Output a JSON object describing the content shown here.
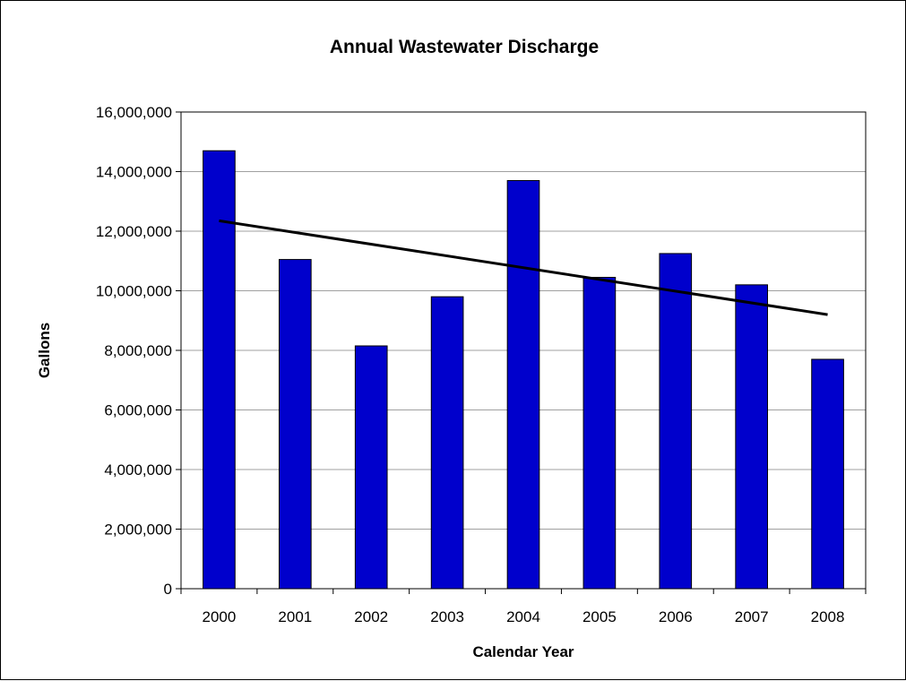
{
  "chart_data": {
    "type": "bar",
    "title": "Annual Wastewater Discharge",
    "xlabel": "Calendar Year",
    "ylabel": "Gallons",
    "categories": [
      "2000",
      "2001",
      "2002",
      "2003",
      "2004",
      "2005",
      "2006",
      "2007",
      "2008"
    ],
    "series": [
      {
        "values": [
          14700000,
          11050000,
          8150000,
          9800000,
          13700000,
          10450000,
          11250000,
          10200000,
          7700000
        ]
      }
    ],
    "trendline": {
      "type": "linear",
      "start": 12350000,
      "end": 9200000
    },
    "ylim": [
      0,
      16000000
    ],
    "yticks": [
      0,
      2000000,
      4000000,
      6000000,
      8000000,
      10000000,
      12000000,
      14000000,
      16000000
    ],
    "ytick_labels": [
      "0",
      "2,000,000",
      "4,000,000",
      "6,000,000",
      "8,000,000",
      "10,000,000",
      "12,000,000",
      "14,000,000",
      "16,000,000"
    ],
    "grid": true,
    "legend": "none",
    "colors": {
      "bar": "#0000CC",
      "bar_edge": "#000000",
      "trendline": "#000000",
      "grid": "#A0A0A0"
    }
  }
}
